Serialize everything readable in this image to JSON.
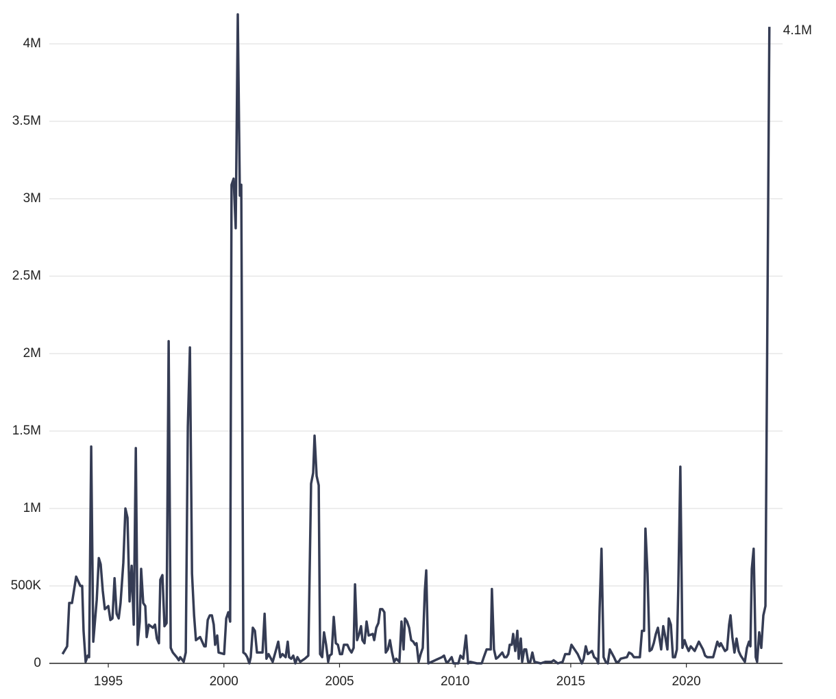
{
  "chart_data": {
    "type": "line",
    "x": [
      1993.02,
      1993.22,
      1993.31,
      1993.43,
      1993.61,
      1993.79,
      1993.87,
      1993.93,
      1994.02,
      1994.11,
      1994.17,
      1994.26,
      1994.35,
      1994.5,
      1994.59,
      1994.67,
      1994.76,
      1994.85,
      1995.0,
      1995.09,
      1995.18,
      1995.27,
      1995.36,
      1995.45,
      1995.53,
      1995.65,
      1995.74,
      1995.83,
      1995.92,
      1996.01,
      1996.1,
      1996.19,
      1996.27,
      1996.36,
      1996.42,
      1996.51,
      1996.6,
      1996.66,
      1996.75,
      1996.93,
      1997.02,
      1997.1,
      1997.19,
      1997.25,
      1997.34,
      1997.43,
      1997.52,
      1997.61,
      1997.7,
      1997.79,
      1997.96,
      1998.05,
      1998.11,
      1998.26,
      1998.35,
      1998.44,
      1998.53,
      1998.62,
      1998.71,
      1998.79,
      1998.97,
      1999.15,
      1999.21,
      1999.3,
      1999.39,
      1999.48,
      1999.56,
      1999.62,
      1999.71,
      1999.77,
      2000.01,
      2000.1,
      2000.19,
      2000.27,
      2000.33,
      2000.42,
      2000.51,
      2000.6,
      2000.69,
      2000.75,
      2000.84,
      2000.93,
      2001.01,
      2001.1,
      2001.16,
      2001.25,
      2001.34,
      2001.43,
      2001.61,
      2001.67,
      2001.76,
      2001.84,
      2001.93,
      2002.11,
      2002.26,
      2002.35,
      2002.44,
      2002.53,
      2002.67,
      2002.76,
      2002.82,
      2002.91,
      2003.0,
      2003.09,
      2003.18,
      2003.3,
      2003.5,
      2003.65,
      2003.77,
      2003.86,
      2003.92,
      2004.01,
      2004.1,
      2004.16,
      2004.25,
      2004.33,
      2004.42,
      2004.51,
      2004.57,
      2004.66,
      2004.75,
      2004.84,
      2004.93,
      2005.02,
      2005.11,
      2005.19,
      2005.34,
      2005.43,
      2005.52,
      2005.61,
      2005.67,
      2005.76,
      2005.85,
      2005.93,
      2005.99,
      2006.08,
      2006.17,
      2006.26,
      2006.44,
      2006.5,
      2006.59,
      2006.68,
      2006.76,
      2006.85,
      2006.94,
      2007.0,
      2007.09,
      2007.18,
      2007.27,
      2007.36,
      2007.45,
      2007.59,
      2007.68,
      2007.77,
      2007.83,
      2007.92,
      2008.01,
      2008.1,
      2008.19,
      2008.27,
      2008.33,
      2008.42,
      2008.51,
      2008.6,
      2008.69,
      2008.75,
      2008.84,
      2009.43,
      2009.52,
      2009.61,
      2009.7,
      2009.85,
      2009.93,
      2010.14,
      2010.23,
      2010.35,
      2010.47,
      2010.56,
      2010.65,
      2010.94,
      2011.15,
      2011.24,
      2011.36,
      2011.54,
      2011.59,
      2011.68,
      2011.77,
      2011.86,
      2012.04,
      2012.13,
      2012.22,
      2012.3,
      2012.36,
      2012.45,
      2012.51,
      2012.6,
      2012.69,
      2012.75,
      2012.84,
      2012.9,
      2012.99,
      2013.07,
      2013.16,
      2013.25,
      2013.34,
      2013.43,
      2013.7,
      2013.9,
      2014.17,
      2014.26,
      2014.44,
      2014.65,
      2014.76,
      2014.94,
      2015.03,
      2015.21,
      2015.3,
      2015.39,
      2015.48,
      2015.56,
      2015.65,
      2015.74,
      2015.92,
      2016.01,
      2016.1,
      2016.19,
      2016.25,
      2016.33,
      2016.42,
      2016.51,
      2016.6,
      2016.69,
      2016.87,
      2016.96,
      2017.07,
      2017.16,
      2017.43,
      2017.52,
      2017.64,
      2017.73,
      2017.91,
      2017.99,
      2018.08,
      2018.17,
      2018.23,
      2018.32,
      2018.41,
      2018.5,
      2018.59,
      2018.68,
      2018.77,
      2018.85,
      2018.91,
      2019.0,
      2019.09,
      2019.18,
      2019.24,
      2019.33,
      2019.42,
      2019.51,
      2019.59,
      2019.65,
      2019.74,
      2019.83,
      2019.92,
      2020.01,
      2020.1,
      2020.19,
      2020.36,
      2020.45,
      2020.54,
      2020.72,
      2020.81,
      2020.9,
      2021.07,
      2021.16,
      2021.25,
      2021.34,
      2021.43,
      2021.49,
      2021.67,
      2021.76,
      2021.85,
      2021.91,
      2021.99,
      2022.08,
      2022.17,
      2022.26,
      2022.35,
      2022.53,
      2022.62,
      2022.71,
      2022.77,
      2022.83,
      2022.91,
      2023.0,
      2023.06,
      2023.15,
      2023.24,
      2023.33,
      2023.42,
      2023.59
    ],
    "series": [
      {
        "color": "#353c54",
        "values": [
          60000,
          110000,
          390000,
          390000,
          560000,
          500000,
          500000,
          210000,
          10000,
          50000,
          40000,
          1400000,
          140000,
          410000,
          680000,
          640000,
          470000,
          350000,
          370000,
          280000,
          290000,
          550000,
          320000,
          290000,
          390000,
          650000,
          1000000,
          940000,
          400000,
          630000,
          250000,
          1390000,
          120000,
          270000,
          610000,
          390000,
          370000,
          170000,
          250000,
          230000,
          250000,
          160000,
          130000,
          540000,
          570000,
          240000,
          260000,
          2080000,
          100000,
          70000,
          40000,
          20000,
          40000,
          10000,
          70000,
          1530000,
          2040000,
          580000,
          310000,
          150000,
          170000,
          110000,
          110000,
          280000,
          310000,
          310000,
          250000,
          120000,
          180000,
          70000,
          60000,
          290000,
          330000,
          270000,
          3090000,
          3130000,
          2810000,
          4190000,
          3020000,
          3090000,
          70000,
          60000,
          40000,
          0,
          40000,
          230000,
          210000,
          70000,
          70000,
          70000,
          320000,
          30000,
          60000,
          10000,
          90000,
          140000,
          40000,
          60000,
          40000,
          140000,
          40000,
          30000,
          50000,
          0,
          40000,
          10000,
          30000,
          50000,
          1160000,
          1230000,
          1470000,
          1210000,
          1150000,
          60000,
          40000,
          200000,
          120000,
          10000,
          50000,
          60000,
          300000,
          130000,
          120000,
          60000,
          60000,
          120000,
          120000,
          90000,
          70000,
          100000,
          510000,
          150000,
          190000,
          240000,
          150000,
          130000,
          270000,
          180000,
          190000,
          150000,
          230000,
          260000,
          350000,
          350000,
          330000,
          70000,
          90000,
          150000,
          70000,
          10000,
          30000,
          10000,
          270000,
          90000,
          290000,
          270000,
          230000,
          150000,
          140000,
          120000,
          130000,
          10000,
          60000,
          100000,
          470000,
          600000,
          0,
          40000,
          50000,
          10000,
          10000,
          40000,
          0,
          0,
          50000,
          30000,
          180000,
          0,
          10000,
          0,
          0,
          40000,
          90000,
          90000,
          480000,
          90000,
          30000,
          40000,
          70000,
          40000,
          40000,
          60000,
          120000,
          120000,
          190000,
          80000,
          210000,
          30000,
          160000,
          10000,
          90000,
          90000,
          10000,
          10000,
          70000,
          10000,
          0,
          10000,
          10000,
          20000,
          0,
          10000,
          60000,
          60000,
          120000,
          80000,
          60000,
          30000,
          0,
          30000,
          110000,
          60000,
          80000,
          40000,
          30000,
          0,
          360000,
          740000,
          40000,
          10000,
          0,
          90000,
          40000,
          10000,
          10000,
          30000,
          40000,
          70000,
          60000,
          40000,
          40000,
          40000,
          210000,
          210000,
          870000,
          580000,
          80000,
          90000,
          130000,
          190000,
          230000,
          150000,
          90000,
          240000,
          170000,
          90000,
          290000,
          250000,
          40000,
          40000,
          90000,
          480000,
          1270000,
          100000,
          150000,
          110000,
          80000,
          110000,
          80000,
          110000,
          140000,
          90000,
          50000,
          40000,
          40000,
          40000,
          90000,
          140000,
          110000,
          130000,
          80000,
          90000,
          250000,
          310000,
          170000,
          70000,
          160000,
          80000,
          50000,
          10000,
          100000,
          140000,
          110000,
          610000,
          740000,
          40000,
          10000,
          200000,
          100000,
          310000,
          370000,
          4110000
        ],
        "last_value_label": "4.1M"
      }
    ],
    "xlim": [
      1992.45,
      2024.16
    ],
    "xticks": [
      1995,
      2000,
      2005,
      2010,
      2015,
      2020
    ],
    "ylim": [
      0,
      4200000
    ],
    "yticks": [
      0,
      {
        "value": 500000,
        "label": "500K"
      },
      {
        "value": 1000000,
        "label": "1M"
      },
      {
        "value": 1500000,
        "label": "1.5M"
      },
      {
        "value": 2000000,
        "label": "2M"
      },
      {
        "value": 2500000,
        "label": "2.5M"
      },
      {
        "value": 3000000,
        "label": "3M"
      },
      {
        "value": 3500000,
        "label": "3.5M"
      },
      {
        "value": 4000000,
        "label": "4M"
      }
    ],
    "grid": true
  }
}
